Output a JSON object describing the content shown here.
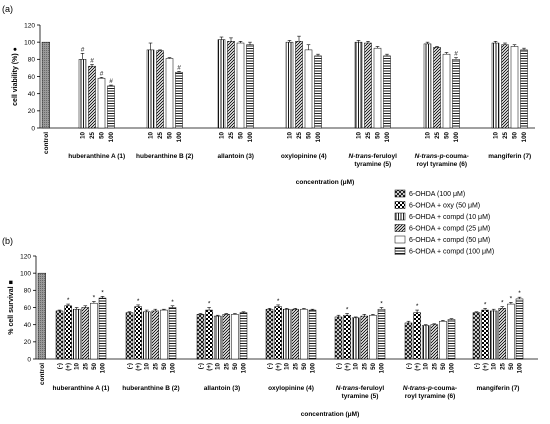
{
  "panel_a": {
    "label": "(a)"
  },
  "panel_b": {
    "label": "(b)"
  },
  "legend": {
    "entries": [
      {
        "label": "6-OHDA (100 μM)",
        "pattern": "p0"
      },
      {
        "label": "6-OHDA + oxy (50 μM)",
        "pattern": "p1"
      },
      {
        "label": "6-OHDA + compd   (10 μM)",
        "pattern": "p2"
      },
      {
        "label": "6-OHDA + compd   (25 μM)",
        "pattern": "p3"
      },
      {
        "label": "6-OHDA + compd   (50 μM)",
        "pattern": "p4"
      },
      {
        "label": "6-OHDA + compd   (100 μM)",
        "pattern": "p5"
      }
    ]
  },
  "chart_data": [
    {
      "type": "bar",
      "panel": "(a)",
      "ylabel": "cell viability (%) ●",
      "xlabel": "concentration (μM)",
      "ylim": [
        0,
        120
      ],
      "yticks": [
        0,
        20,
        40,
        60,
        80,
        100,
        120
      ],
      "control": {
        "label": "control",
        "value": 100
      },
      "groups": [
        {
          "name": "huberanthine A  (1)",
          "name_parts": [
            {
              "text": "huberanthine A  (1)",
              "italic": false
            }
          ],
          "bars": [
            {
              "label": "10",
              "value": 80,
              "err": 7,
              "mark": "#"
            },
            {
              "label": "25",
              "value": 72,
              "err": 2,
              "mark": "#"
            },
            {
              "label": "50",
              "value": 58,
              "err": 1,
              "mark": "#"
            },
            {
              "label": "100",
              "value": 49,
              "err": 1,
              "mark": "#"
            }
          ]
        },
        {
          "name": "huberanthine B (2)",
          "name_parts": [
            {
              "text": "huberanthine B (2)",
              "italic": false
            }
          ],
          "bars": [
            {
              "label": "10",
              "value": 91,
              "err": 8,
              "mark": ""
            },
            {
              "label": "25",
              "value": 90,
              "err": 1,
              "mark": ""
            },
            {
              "label": "50",
              "value": 81,
              "err": 1,
              "mark": ""
            },
            {
              "label": "100",
              "value": 65,
              "err": 1,
              "mark": "#"
            }
          ]
        },
        {
          "name": "allantoin  (3)",
          "name_parts": [
            {
              "text": "allantoin  (3)",
              "italic": false
            }
          ],
          "bars": [
            {
              "label": "10",
              "value": 103,
              "err": 3,
              "mark": ""
            },
            {
              "label": "25",
              "value": 101,
              "err": 4,
              "mark": ""
            },
            {
              "label": "50",
              "value": 99,
              "err": 2,
              "mark": ""
            },
            {
              "label": "100",
              "value": 97,
              "err": 3,
              "mark": ""
            }
          ]
        },
        {
          "name": "oxylopinine  (4)",
          "name_parts": [
            {
              "text": "oxylopinine  (4)",
              "italic": false
            }
          ],
          "bars": [
            {
              "label": "10",
              "value": 100,
              "err": 2,
              "mark": ""
            },
            {
              "label": "25",
              "value": 101,
              "err": 6,
              "mark": ""
            },
            {
              "label": "50",
              "value": 91,
              "err": 6,
              "mark": ""
            },
            {
              "label": "100",
              "value": 84,
              "err": 2,
              "mark": ""
            }
          ]
        },
        {
          "name": "N-trans-feruloyl tyramine  (5)",
          "name_parts": [
            {
              "text": "N-trans",
              "italic": true
            },
            {
              "text": "-feruloyl",
              "italic": false
            }
          ],
          "name_line2": "tyramine  (5)",
          "bars": [
            {
              "label": "10",
              "value": 100,
              "err": 2,
              "mark": ""
            },
            {
              "label": "25",
              "value": 99,
              "err": 2,
              "mark": ""
            },
            {
              "label": "50",
              "value": 93,
              "err": 2,
              "mark": ""
            },
            {
              "label": "100",
              "value": 84,
              "err": 2,
              "mark": ""
            }
          ]
        },
        {
          "name": "N-trans-p-coumaroyl tyramine (6)",
          "name_parts": [
            {
              "text": "N-trans-p",
              "italic": true
            },
            {
              "text": "-couma-",
              "italic": false
            }
          ],
          "name_line2": "royl tyramine (6)",
          "bars": [
            {
              "label": "10",
              "value": 98,
              "err": 2,
              "mark": ""
            },
            {
              "label": "25",
              "value": 94,
              "err": 1,
              "mark": ""
            },
            {
              "label": "50",
              "value": 86,
              "err": 2,
              "mark": ""
            },
            {
              "label": "100",
              "value": 80,
              "err": 2,
              "mark": "#"
            }
          ]
        },
        {
          "name": "mangiferin  (7)",
          "name_parts": [
            {
              "text": "mangiferin  (7)",
              "italic": false
            }
          ],
          "bars": [
            {
              "label": "10",
              "value": 99,
              "err": 2,
              "mark": ""
            },
            {
              "label": "25",
              "value": 97,
              "err": 2,
              "mark": ""
            },
            {
              "label": "50",
              "value": 95,
              "err": 2,
              "mark": ""
            },
            {
              "label": "100",
              "value": 91,
              "err": 2,
              "mark": ""
            }
          ]
        }
      ]
    },
    {
      "type": "bar",
      "panel": "(b)",
      "ylabel": "% cell survival ■",
      "xlabel": "concentration (μM)",
      "ylim": [
        0,
        120
      ],
      "yticks": [
        0,
        20,
        40,
        60,
        80,
        100,
        120
      ],
      "control": {
        "label": "control",
        "value": 100
      },
      "groups": [
        {
          "name": "huberanthine A  (1)",
          "name_parts": [
            {
              "text": "huberanthine A  (1)",
              "italic": false
            }
          ],
          "bars": [
            {
              "label": "(-)",
              "value": 56,
              "err": 1,
              "mark": ""
            },
            {
              "label": "(+)",
              "value": 62,
              "err": 2,
              "mark": "*"
            },
            {
              "label": "10",
              "value": 58,
              "err": 2,
              "mark": ""
            },
            {
              "label": "25",
              "value": 60,
              "err": 2,
              "mark": ""
            },
            {
              "label": "50",
              "value": 65,
              "err": 2,
              "mark": "*"
            },
            {
              "label": "100",
              "value": 71,
              "err": 2,
              "mark": "*"
            }
          ]
        },
        {
          "name": "huberanthine B (2)",
          "name_parts": [
            {
              "text": "huberanthine B (2)",
              "italic": false
            }
          ],
          "bars": [
            {
              "label": "(-)",
              "value": 54,
              "err": 1,
              "mark": ""
            },
            {
              "label": "(+)",
              "value": 61,
              "err": 2,
              "mark": "*"
            },
            {
              "label": "10",
              "value": 55,
              "err": 2,
              "mark": ""
            },
            {
              "label": "25",
              "value": 56,
              "err": 2,
              "mark": ""
            },
            {
              "label": "50",
              "value": 57,
              "err": 1,
              "mark": ""
            },
            {
              "label": "100",
              "value": 60,
              "err": 2,
              "mark": "*"
            }
          ]
        },
        {
          "name": "allantoin  (3)",
          "name_parts": [
            {
              "text": "allantoin  (3)",
              "italic": false
            }
          ],
          "bars": [
            {
              "label": "(-)",
              "value": 52,
              "err": 1,
              "mark": ""
            },
            {
              "label": "(+)",
              "value": 57,
              "err": 3,
              "mark": "*"
            },
            {
              "label": "10",
              "value": 50,
              "err": 1,
              "mark": ""
            },
            {
              "label": "25",
              "value": 52,
              "err": 1,
              "mark": ""
            },
            {
              "label": "50",
              "value": 52,
              "err": 1,
              "mark": ""
            },
            {
              "label": "100",
              "value": 54,
              "err": 1,
              "mark": ""
            }
          ]
        },
        {
          "name": "oxylopinine  (4)",
          "name_parts": [
            {
              "text": "oxylopinine  (4)",
              "italic": false
            }
          ],
          "bars": [
            {
              "label": "(-)",
              "value": 58,
              "err": 1,
              "mark": ""
            },
            {
              "label": "(+)",
              "value": 61,
              "err": 2,
              "mark": "*"
            },
            {
              "label": "10",
              "value": 58,
              "err": 1,
              "mark": ""
            },
            {
              "label": "25",
              "value": 58,
              "err": 1,
              "mark": ""
            },
            {
              "label": "50",
              "value": 58,
              "err": 1,
              "mark": ""
            },
            {
              "label": "100",
              "value": 57,
              "err": 1,
              "mark": ""
            }
          ]
        },
        {
          "name": "N-trans-feruloyl tyramine  (5)",
          "name_parts": [
            {
              "text": "N-trans",
              "italic": true
            },
            {
              "text": "-feruloyl",
              "italic": false
            }
          ],
          "name_line2": "tyramine  (5)",
          "bars": [
            {
              "label": "(-)",
              "value": 49,
              "err": 2,
              "mark": ""
            },
            {
              "label": "(+)",
              "value": 51,
              "err": 2,
              "mark": "*"
            },
            {
              "label": "10",
              "value": 48,
              "err": 1,
              "mark": ""
            },
            {
              "label": "25",
              "value": 50,
              "err": 2,
              "mark": ""
            },
            {
              "label": "50",
              "value": 51,
              "err": 1,
              "mark": ""
            },
            {
              "label": "100",
              "value": 58,
              "err": 2,
              "mark": "*"
            }
          ]
        },
        {
          "name": "N-trans-p-coumaroyl tyramine (6)",
          "name_parts": [
            {
              "text": "N-trans-p",
              "italic": true
            },
            {
              "text": "-couma-",
              "italic": false
            }
          ],
          "name_line2": "royl tyramine (6)",
          "bars": [
            {
              "label": "(-)",
              "value": 42,
              "err": 2,
              "mark": ""
            },
            {
              "label": "(+)",
              "value": 54,
              "err": 3,
              "mark": "*"
            },
            {
              "label": "10",
              "value": 39,
              "err": 1,
              "mark": ""
            },
            {
              "label": "25",
              "value": 40,
              "err": 1,
              "mark": ""
            },
            {
              "label": "50",
              "value": 44,
              "err": 1,
              "mark": ""
            },
            {
              "label": "100",
              "value": 46,
              "err": 1,
              "mark": ""
            }
          ]
        },
        {
          "name": "mangiferin  (7)",
          "name_parts": [
            {
              "text": "mangiferin  (7)",
              "italic": false
            }
          ],
          "bars": [
            {
              "label": "(-)",
              "value": 54,
              "err": 1,
              "mark": ""
            },
            {
              "label": "(+)",
              "value": 57,
              "err": 2,
              "mark": "*"
            },
            {
              "label": "10",
              "value": 56,
              "err": 2,
              "mark": ""
            },
            {
              "label": "25",
              "value": 59,
              "err": 2,
              "mark": "*"
            },
            {
              "label": "50",
              "value": 64,
              "err": 2,
              "mark": "*"
            },
            {
              "label": "100",
              "value": 70,
              "err": 2,
              "mark": "*"
            }
          ]
        }
      ]
    }
  ]
}
